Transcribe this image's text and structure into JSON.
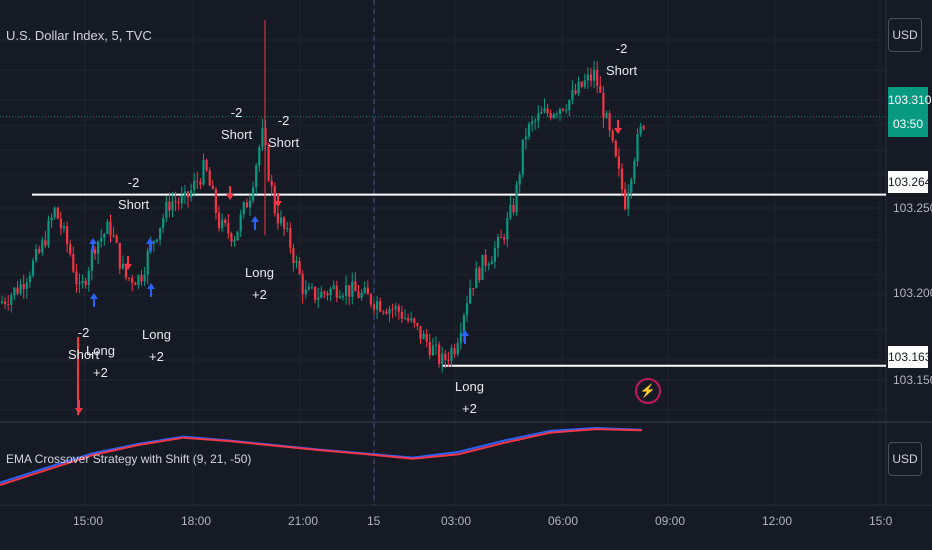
{
  "header": {
    "title": "U.S. Dollar Index, 5, TVC",
    "currency": "USD"
  },
  "price_tags": {
    "last_price": "103.310",
    "countdown": "03:50",
    "upper_level": "103.264",
    "lower_level": "103.163"
  },
  "indicator": {
    "title": "EMA Crossover Strategy with Shift (9, 21, -50)",
    "currency": "USD"
  },
  "colors": {
    "up": "#089981",
    "down": "#f23645",
    "long_arrow": "#2962ff",
    "short_arrow": "#f23645",
    "ema_fast": "#2962ff",
    "ema_slow": "#f23645",
    "background": "#161a25"
  },
  "chart_data": {
    "type": "candlestick",
    "title": "U.S. Dollar Index, 5, TVC",
    "x_ticks": [
      "15:00",
      "18:00",
      "21:00",
      "15",
      "03:00",
      "06:00",
      "09:00",
      "12:00",
      "15:0"
    ],
    "y_ticks": [
      103.25,
      103.2,
      103.15
    ],
    "y_tick_labels": [
      "103.250",
      "103.200",
      "103.150"
    ],
    "ylim": [
      103.131,
      103.373
    ],
    "last_price": 103.31,
    "levels": [
      103.264,
      103.163
    ],
    "signals": [
      {
        "side": "short",
        "label": "-2\nShort",
        "x": "14:25",
        "price": 103.24
      },
      {
        "side": "long",
        "label": "Long\n+2",
        "x": "15:10",
        "price": 103.21
      },
      {
        "side": "short",
        "label": "-2\nShort",
        "x": "16:10",
        "price": 103.26
      },
      {
        "side": "long",
        "label": "Long\n+2",
        "x": "16:45",
        "price": 103.22
      },
      {
        "side": "short",
        "label": "-2\nShort",
        "x": "19:10",
        "price": 103.26
      },
      {
        "side": "long",
        "label": "Long\n+2",
        "x": "19:35",
        "price": 103.25
      },
      {
        "side": "short",
        "label": "-2\nShort",
        "x": "20:10",
        "price": 103.26
      },
      {
        "side": "long",
        "label": "Long\n+2",
        "x": "02:20",
        "price": 103.17
      },
      {
        "side": "short",
        "label": "-2\nShort",
        "x": "07:25",
        "price": 103.3
      }
    ],
    "ema_fast": [
      0.04,
      0.3,
      0.55,
      0.72,
      0.85,
      0.78,
      0.7,
      0.62,
      0.55,
      0.48,
      0.58,
      0.78,
      0.95,
      1.0,
      0.97
    ],
    "ema_slow": [
      0.0,
      0.26,
      0.52,
      0.7,
      0.83,
      0.77,
      0.69,
      0.61,
      0.54,
      0.46,
      0.54,
      0.74,
      0.92,
      0.98,
      0.96
    ]
  }
}
